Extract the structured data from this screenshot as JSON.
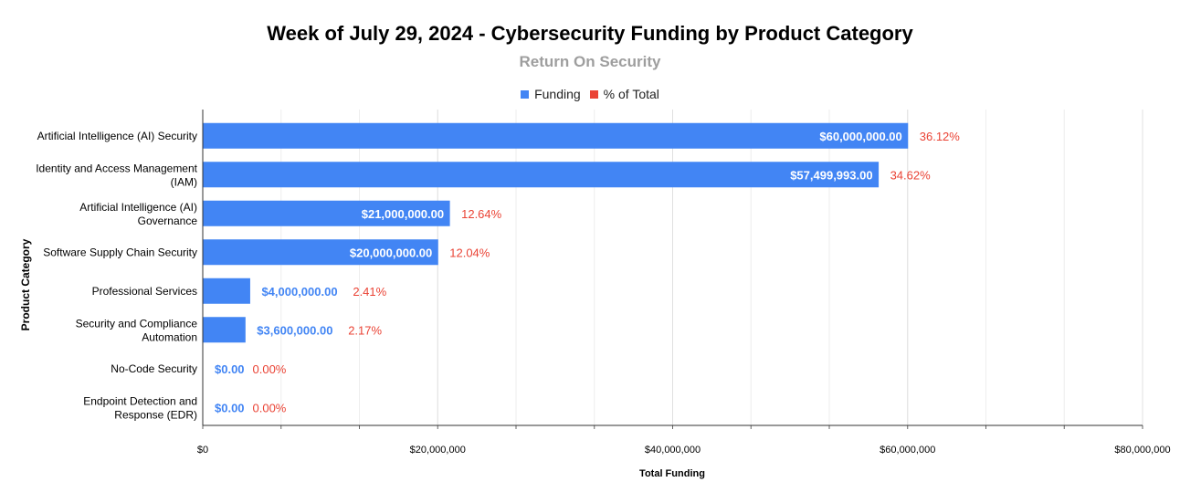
{
  "chart_data": {
    "type": "bar",
    "orientation": "horizontal",
    "title": "Week of July 29, 2024 - Cybersecurity Funding by Product Category",
    "subtitle": "Return On Security",
    "xlabel": "Total Funding",
    "ylabel": "Product Category",
    "xlim": [
      0,
      80000000
    ],
    "xticks": [
      0,
      20000000,
      40000000,
      60000000,
      80000000
    ],
    "xtick_labels": [
      "$0",
      "$20,000,000",
      "$40,000,000",
      "$60,000,000",
      "$80,000,000"
    ],
    "grid": true,
    "legend_position": "top-center",
    "legend": [
      {
        "name": "Funding",
        "color": "#4285f4"
      },
      {
        "name": "% of Total",
        "color": "#ea4335"
      }
    ],
    "categories": [
      [
        "Artificial Intelligence (AI) Security"
      ],
      [
        "Identity and Access Management",
        "(IAM)"
      ],
      [
        "Artificial Intelligence (AI)",
        "Governance"
      ],
      [
        "Software Supply Chain Security"
      ],
      [
        "Professional Services"
      ],
      [
        "Security and Compliance",
        "Automation"
      ],
      [
        "No-Code Security"
      ],
      [
        "Endpoint Detection and",
        "Response (EDR)"
      ]
    ],
    "series": [
      {
        "name": "Funding",
        "values": [
          60000000,
          57499993,
          21000000,
          20000000,
          4000000,
          3600000,
          0,
          0
        ],
        "labels": [
          "$60,000,000.00",
          "$57,499,993.00",
          "$21,000,000.00",
          "$20,000,000.00",
          "$4,000,000.00",
          "$3,600,000.00",
          "$0.00",
          "$0.00"
        ]
      },
      {
        "name": "% of Total",
        "values": [
          36.12,
          34.62,
          12.64,
          12.04,
          2.41,
          2.17,
          0.0,
          0.0
        ],
        "labels": [
          "36.12%",
          "34.62%",
          "12.64%",
          "12.04%",
          "2.41%",
          "2.17%",
          "0.00%",
          "0.00%"
        ]
      }
    ],
    "colors": {
      "bar": "#4285f4",
      "percent": "#ea4335",
      "grid": "#e0e0e0",
      "axis": "#333333",
      "bar_label_inside": "#ffffff",
      "bar_label_outside": "#4285f4"
    }
  }
}
